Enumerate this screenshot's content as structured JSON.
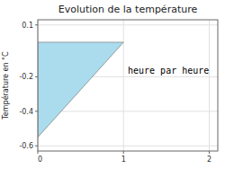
{
  "chart_data": {
    "type": "polygon",
    "title": "Evolution de la température",
    "ylabel": "Température en °C",
    "annotation": "heure par heure",
    "x": [
      0,
      1,
      0,
      0
    ],
    "values": [
      0.0,
      0.0,
      -0.55,
      0.0
    ],
    "color": "#aadcee",
    "xlim": [
      0,
      2.1
    ],
    "ylim": [
      -0.63,
      0.13
    ],
    "xticks": [
      0,
      1,
      2
    ],
    "yticks": [
      0.1,
      -0.2,
      -0.4,
      -0.6
    ],
    "grid": true
  }
}
